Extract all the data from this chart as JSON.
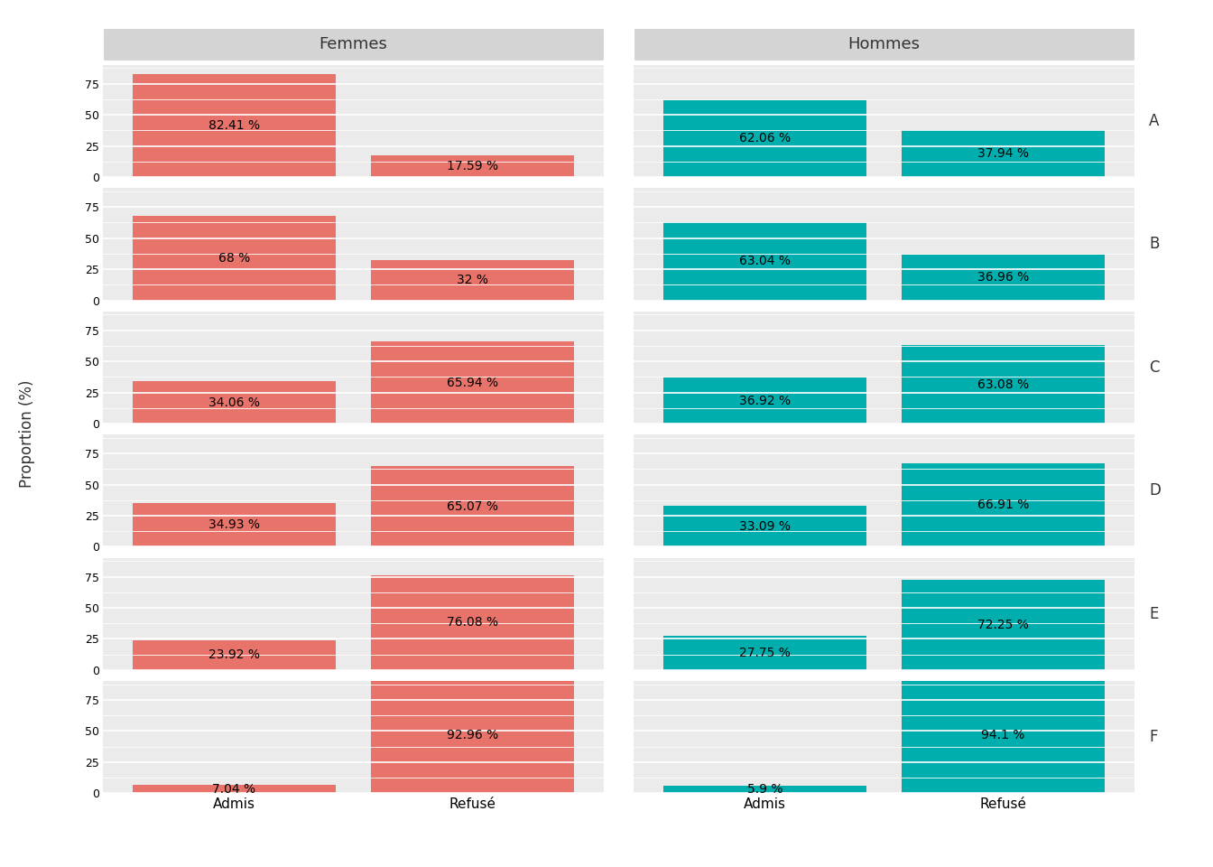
{
  "departments": [
    "A",
    "B",
    "C",
    "D",
    "E",
    "F"
  ],
  "femmes": {
    "admis": [
      82.41,
      68.0,
      34.06,
      34.93,
      23.92,
      7.04
    ],
    "refuse": [
      17.59,
      32.0,
      65.94,
      65.07,
      76.08,
      92.96
    ]
  },
  "hommes": {
    "admis": [
      62.06,
      63.04,
      36.92,
      33.09,
      27.75,
      5.9
    ],
    "refuse": [
      37.94,
      36.96,
      63.08,
      66.91,
      72.25,
      94.1
    ]
  },
  "label_admis": {
    "femmes": [
      "82.41 %",
      "68 %",
      "34.06 %",
      "34.93 %",
      "23.92 %",
      "7.04 %"
    ],
    "hommes": [
      "62.06 %",
      "63.04 %",
      "36.92 %",
      "33.09 %",
      "27.75 %",
      "5.9 %"
    ]
  },
  "label_refuse": {
    "femmes": [
      "17.59 %",
      "32 %",
      "65.94 %",
      "65.07 %",
      "76.08 %",
      "92.96 %"
    ],
    "hommes": [
      "37.94 %",
      "36.96 %",
      "63.08 %",
      "66.91 %",
      "72.25 %",
      "94.1 %"
    ]
  },
  "femmes_color": "#E8736A",
  "hommes_color": "#00AEAE",
  "panel_bg": "#EBEBEB",
  "strip_bg": "#D4D4D4",
  "fig_bg": "#FFFFFF",
  "grid_color": "#FFFFFF",
  "sep_color": "#FFFFFF",
  "ylabel": "Proportion (%)",
  "title_left": "Femmes",
  "title_right": "Hommes",
  "yticks": [
    0,
    25,
    50,
    75
  ],
  "ylim_max": 90,
  "bar_width": 0.85
}
